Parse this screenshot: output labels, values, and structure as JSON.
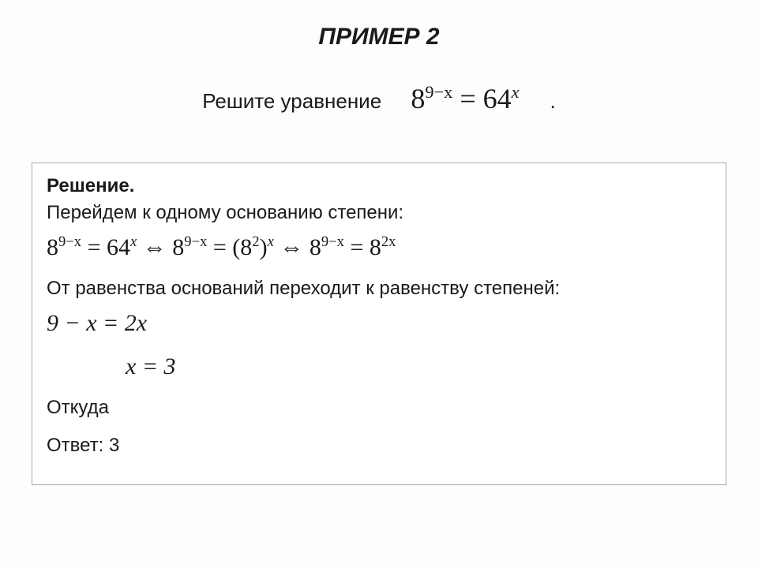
{
  "colors": {
    "background": "#fdfdfd",
    "text": "#1a1a1a",
    "box_border": "#9aa9c9",
    "box_bg": "#ffffff"
  },
  "typography": {
    "body_font": "Arial",
    "math_font": "Times New Roman",
    "title_fontsize_pt": 22,
    "body_fontsize_pt": 18,
    "math_fontsize_pt": 22,
    "main_eq_fontsize_pt": 28
  },
  "title": "ПРИМЕР 2",
  "prompt": {
    "text": "Решите уравнение",
    "equation": {
      "base_left": "8",
      "exp_left": "9−x",
      "eq": " = ",
      "base_right": "64",
      "exp_right": "x"
    },
    "trailing_period": "."
  },
  "solution": {
    "heading": "Решение.",
    "line1": " Перейдем к одному основанию степени:",
    "math_chain": {
      "p1_base_l": "8",
      "p1_exp_l": "9−x",
      "p1_eq": " = ",
      "p1_base_r": "64",
      "p1_exp_r": "x",
      "iff1": " ⇔ ",
      "p2_base_l": "8",
      "p2_exp_l": "9−x",
      "p2_eq": " = (",
      "p2_inner_base": "8",
      "p2_inner_exp": "2",
      "p2_close": ")",
      "p2_outer_exp": "x",
      "iff2": "  ⇔ ",
      "p3_base_l": "8",
      "p3_exp_l": "9−x",
      "p3_eq": " = ",
      "p3_base_r": "8",
      "p3_exp_r": "2x"
    },
    "line2": "От равенства оснований переходит к равенству степеней:",
    "math2": "9 − x = 2x",
    "math3": "x = 3",
    "line3": "Откуда",
    "answer": "Ответ: 3"
  }
}
